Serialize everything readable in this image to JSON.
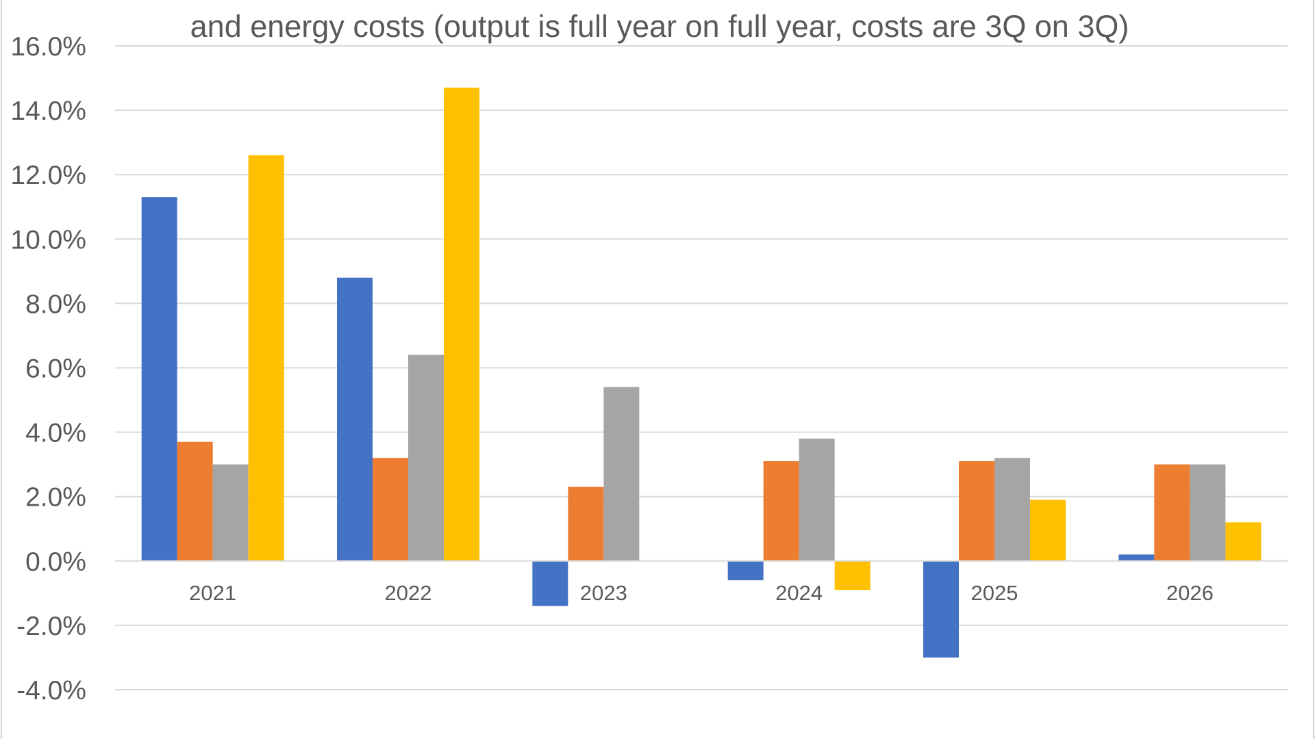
{
  "chart_data": {
    "type": "bar",
    "title_lines": [
      "and energy costs (output is full year on full year, costs are 3Q on 3Q)"
    ],
    "categories": [
      "2021",
      "2022",
      "2023",
      "2024",
      "2025",
      "2026"
    ],
    "series": [
      {
        "color": "#4472c4",
        "values": [
          11.3,
          8.8,
          -1.4,
          -0.6,
          -3.0,
          0.2
        ]
      },
      {
        "color": "#ed7d31",
        "values": [
          3.7,
          3.2,
          2.3,
          3.1,
          3.1,
          3.0
        ]
      },
      {
        "color": "#a5a5a5",
        "values": [
          3.0,
          6.4,
          5.4,
          3.8,
          3.2,
          3.0
        ]
      },
      {
        "color": "#ffc000",
        "values": [
          12.6,
          14.7,
          0.0,
          -0.9,
          1.9,
          1.2
        ]
      }
    ],
    "y_ticks": [
      "16.0%",
      "14.0%",
      "12.0%",
      "10.0%",
      "8.0%",
      "6.0%",
      "4.0%",
      "2.0%",
      "0.0%",
      "-2.0%",
      "-4.0%"
    ],
    "ylim": [
      -4,
      16
    ],
    "grid": true,
    "legend": "none"
  }
}
